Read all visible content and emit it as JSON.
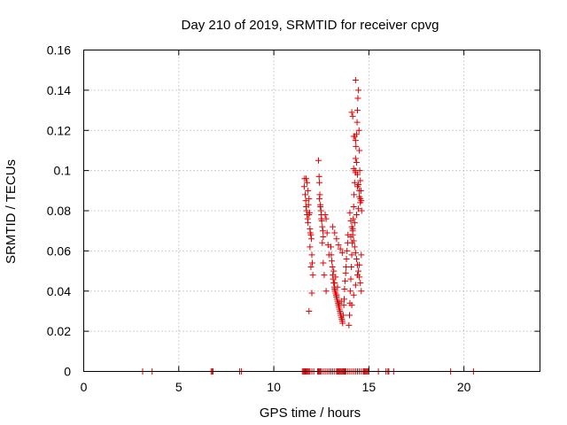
{
  "chart_data": {
    "type": "scatter",
    "title": "Day 210 of 2019, SRMTID for receiver cpvg",
    "xlabel": "GPS time / hours",
    "ylabel": "SRMTID / TECUs",
    "xlim": [
      0,
      24
    ],
    "ylim": [
      0,
      0.16
    ],
    "xticks": [
      0,
      5,
      10,
      15,
      20
    ],
    "xtick_labels": [
      "0",
      "5",
      "10",
      "15",
      "20"
    ],
    "yticks": [
      0,
      0.02,
      0.04,
      0.06,
      0.08,
      0.1,
      0.12,
      0.14,
      0.16
    ],
    "ytick_labels": [
      "0",
      "0.02",
      "0.04",
      "0.06",
      "0.08",
      "0.1",
      "0.12",
      "0.14",
      "0.16"
    ],
    "grid": true,
    "marker": "+",
    "color": "#e00000",
    "series": [
      {
        "name": "SRMTID",
        "x": [
          3.1,
          3.6,
          6.7,
          6.75,
          6.8,
          8.2,
          8.3,
          11.5,
          11.55,
          11.6,
          11.65,
          11.7,
          11.75,
          11.8,
          11.85,
          11.9,
          12.0,
          12.1,
          12.3,
          12.35,
          12.4,
          12.45,
          12.5,
          12.6,
          12.7,
          12.8,
          12.9,
          13.0,
          13.1,
          13.2,
          13.3,
          13.35,
          13.4,
          13.45,
          13.5,
          13.55,
          13.6,
          13.65,
          13.7,
          13.75,
          13.8,
          13.9,
          14.0,
          14.1,
          14.2,
          14.3,
          14.4,
          14.5,
          14.6,
          14.7,
          14.75,
          14.8,
          14.85,
          14.9,
          14.95,
          15.0,
          15.5,
          15.9,
          16.0,
          16.05,
          16.3,
          19.3,
          20.5,
          11.6,
          11.62,
          11.65,
          11.68,
          11.7,
          11.72,
          11.75,
          11.78,
          11.8,
          11.82,
          11.85,
          11.88,
          11.9,
          11.92,
          11.95,
          11.98,
          12.0,
          12.02,
          12.05,
          11.7,
          11.75,
          11.8,
          11.85,
          11.9,
          11.95,
          12.0,
          11.85,
          12.35,
          12.38,
          12.4,
          12.42,
          12.45,
          12.48,
          12.5,
          12.52,
          12.55,
          12.58,
          12.6,
          12.4,
          12.45,
          12.5,
          12.55,
          12.7,
          12.75,
          12.8,
          12.85,
          12.9,
          12.6,
          12.65,
          12.75,
          13.0,
          13.02,
          13.05,
          13.08,
          13.1,
          13.12,
          13.15,
          13.18,
          13.2,
          13.22,
          13.25,
          13.28,
          13.3,
          13.32,
          13.35,
          13.38,
          13.4,
          13.42,
          13.45,
          13.48,
          13.5,
          13.52,
          13.55,
          13.58,
          13.6,
          13.62,
          13.65,
          13.68,
          13.7,
          13.72,
          13.75,
          13.78,
          13.8,
          13.82,
          13.85,
          13.88,
          13.9,
          13.1,
          13.2,
          13.3,
          13.4,
          13.5,
          13.6,
          13.2,
          13.3,
          13.45,
          13.15,
          13.25,
          13.35,
          13.55,
          13.95,
          13.98,
          14.0,
          14.02,
          14.05,
          14.08,
          14.1,
          14.12,
          14.15,
          14.18,
          14.2,
          14.22,
          14.25,
          14.28,
          14.3,
          14.32,
          14.35,
          14.38,
          14.4,
          14.42,
          14.45,
          14.48,
          14.5,
          14.52,
          14.55,
          14.58,
          14.6,
          14.62,
          14.1,
          14.15,
          14.2,
          14.25,
          14.3,
          14.35,
          14.4,
          14.45,
          14.5,
          14.55,
          14.0,
          14.05,
          14.1,
          14.15,
          14.2,
          14.25,
          14.3,
          14.35,
          14.4,
          14.45,
          14.5,
          14.55,
          14.6,
          14.1,
          14.2,
          14.3,
          14.4,
          14.5,
          14.6,
          14.05,
          14.15,
          14.25,
          14.35,
          14.45,
          14.55,
          14.2,
          14.3,
          14.4,
          14.5,
          14.3
        ],
        "y": [
          0,
          0,
          0,
          0,
          0,
          0,
          0,
          0,
          0,
          0,
          0,
          0,
          0,
          0,
          0,
          0,
          0,
          0,
          0,
          0,
          0,
          0,
          0,
          0,
          0,
          0,
          0,
          0,
          0,
          0,
          0,
          0,
          0,
          0,
          0,
          0,
          0,
          0,
          0,
          0,
          0,
          0,
          0,
          0,
          0,
          0,
          0,
          0,
          0,
          0,
          0,
          0,
          0,
          0,
          0,
          0,
          0,
          0,
          0,
          0,
          0,
          0,
          0,
          0.092,
          0.096,
          0.088,
          0.085,
          0.082,
          0.08,
          0.078,
          0.076,
          0.074,
          0.083,
          0.086,
          0.079,
          0.071,
          0.069,
          0.068,
          0.066,
          0.058,
          0.054,
          0.048,
          0.096,
          0.094,
          0.09,
          0.078,
          0.062,
          0.052,
          0.039,
          0.03,
          0.105,
          0.097,
          0.094,
          0.088,
          0.083,
          0.08,
          0.078,
          0.075,
          0.072,
          0.07,
          0.067,
          0.086,
          0.082,
          0.076,
          0.064,
          0.078,
          0.076,
          0.069,
          0.063,
          0.058,
          0.054,
          0.048,
          0.04,
          0.062,
          0.058,
          0.055,
          0.052,
          0.048,
          0.046,
          0.044,
          0.042,
          0.041,
          0.04,
          0.039,
          0.038,
          0.037,
          0.036,
          0.035,
          0.034,
          0.033,
          0.032,
          0.031,
          0.03,
          0.029,
          0.028,
          0.027,
          0.026,
          0.025,
          0.024,
          0.028,
          0.033,
          0.036,
          0.041,
          0.045,
          0.049,
          0.052,
          0.056,
          0.06,
          0.064,
          0.068,
          0.072,
          0.069,
          0.066,
          0.063,
          0.061,
          0.059,
          0.044,
          0.038,
          0.034,
          0.05,
          0.047,
          0.042,
          0.035,
          0.023,
          0.028,
          0.034,
          0.04,
          0.046,
          0.052,
          0.058,
          0.064,
          0.07,
          0.076,
          0.082,
          0.088,
          0.094,
          0.1,
          0.106,
          0.112,
          0.118,
          0.124,
          0.13,
          0.136,
          0.14,
          0.12,
          0.11,
          0.1,
          0.095,
          0.09,
          0.085,
          0.08,
          0.129,
          0.127,
          0.117,
          0.117,
          0.115,
          0.104,
          0.098,
          0.093,
          0.09,
          0.086,
          0.079,
          0.075,
          0.072,
          0.068,
          0.065,
          0.062,
          0.059,
          0.056,
          0.053,
          0.05,
          0.047,
          0.044,
          0.04,
          0.033,
          0.038,
          0.043,
          0.048,
          0.053,
          0.058,
          0.067,
          0.071,
          0.074,
          0.078,
          0.081,
          0.084,
          0.101,
          0.099,
          0.092,
          0.087,
          0.145
        ]
      }
    ]
  }
}
